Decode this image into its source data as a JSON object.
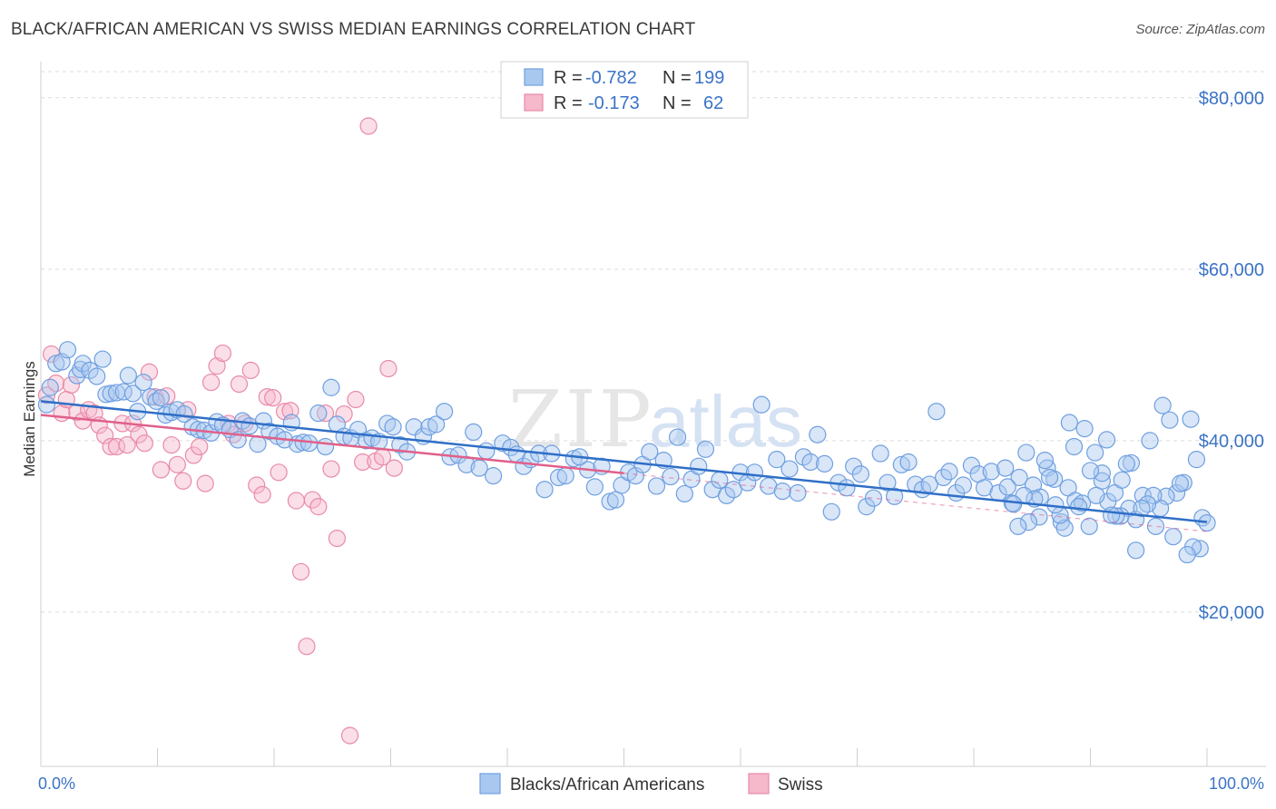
{
  "title": "BLACK/AFRICAN AMERICAN VS SWISS MEDIAN EARNINGS CORRELATION CHART",
  "source": "Source: ZipAtlas.com",
  "watermark": {
    "zip": "ZIP",
    "atlas": "atlas"
  },
  "colors": {
    "blue_fill": "#a8c8f0",
    "blue_stroke": "#6f9fe0",
    "blue_line": "#2f6fc7",
    "pink_fill": "#f6b8cb",
    "pink_stroke": "#e88aa8",
    "pink_line": "#e0608a",
    "grid": "#dcdcdc",
    "tick_text": "#3b73c6"
  },
  "stats_box": {
    "rows": [
      {
        "r_label": "R =",
        "r_value": "-0.782",
        "n_label": "N =",
        "n_value": "199"
      },
      {
        "r_label": "R =",
        "r_value": "-0.173",
        "n_label": "N =",
        "n_value": "62"
      }
    ]
  },
  "chart_data": {
    "type": "scatter",
    "title": "BLACK/AFRICAN AMERICAN VS SWISS MEDIAN EARNINGS CORRELATION CHART",
    "xlabel": "",
    "ylabel": "Median Earnings",
    "xlim": [
      0,
      100
    ],
    "ylim": [
      2000,
      84000
    ],
    "x_tick_labels": [
      "0.0%",
      "100.0%"
    ],
    "y_ticks": [
      20000,
      40000,
      60000,
      80000
    ],
    "y_tick_labels": [
      "$20,000",
      "$40,000",
      "$60,000",
      "$80,000"
    ],
    "grid": true,
    "legend_position": "bottom-center",
    "series": [
      {
        "name": "Blacks/African Americans",
        "color": "blue",
        "R": -0.782,
        "N": 199,
        "trend": {
          "x": [
            0,
            100
          ],
          "y": [
            44600,
            30500
          ]
        },
        "points": [
          [
            0.5,
            44200
          ],
          [
            0.8,
            46200
          ],
          [
            1.3,
            49000
          ],
          [
            1.8,
            49200
          ],
          [
            2.3,
            50600
          ],
          [
            3.1,
            47600
          ],
          [
            3.4,
            48300
          ],
          [
            3.6,
            49000
          ],
          [
            4.2,
            48200
          ],
          [
            4.8,
            47500
          ],
          [
            5.3,
            49500
          ],
          [
            5.6,
            45400
          ],
          [
            6.0,
            45500
          ],
          [
            6.5,
            45600
          ],
          [
            7.1,
            45700
          ],
          [
            7.5,
            47600
          ],
          [
            7.9,
            45500
          ],
          [
            8.3,
            43400
          ],
          [
            8.8,
            46800
          ],
          [
            9.4,
            45100
          ],
          [
            9.9,
            44600
          ],
          [
            10.3,
            45000
          ],
          [
            10.7,
            43000
          ],
          [
            11.2,
            43300
          ],
          [
            11.7,
            43600
          ],
          [
            12.3,
            43100
          ],
          [
            13.0,
            41600
          ],
          [
            13.5,
            41300
          ],
          [
            14.0,
            41200
          ],
          [
            14.6,
            40900
          ],
          [
            15.1,
            42200
          ],
          [
            15.6,
            41800
          ],
          [
            16.2,
            41300
          ],
          [
            16.9,
            40100
          ],
          [
            17.3,
            42300
          ],
          [
            17.9,
            41700
          ],
          [
            18.6,
            39600
          ],
          [
            19.1,
            42300
          ],
          [
            19.6,
            41100
          ],
          [
            20.3,
            40500
          ],
          [
            20.9,
            40100
          ],
          [
            21.5,
            42100
          ],
          [
            22.0,
            39600
          ],
          [
            22.5,
            39800
          ],
          [
            23.0,
            39700
          ],
          [
            23.8,
            43200
          ],
          [
            24.4,
            39300
          ],
          [
            24.9,
            46200
          ],
          [
            25.4,
            41900
          ],
          [
            26.0,
            40500
          ],
          [
            26.6,
            40300
          ],
          [
            27.2,
            41300
          ],
          [
            27.9,
            40000
          ],
          [
            28.4,
            40300
          ],
          [
            29.0,
            39900
          ],
          [
            29.7,
            42000
          ],
          [
            30.2,
            41600
          ],
          [
            30.8,
            39500
          ],
          [
            31.4,
            38700
          ],
          [
            32.0,
            41600
          ],
          [
            32.8,
            40500
          ],
          [
            33.3,
            41600
          ],
          [
            33.9,
            41900
          ],
          [
            34.6,
            43400
          ],
          [
            35.1,
            38100
          ],
          [
            35.8,
            38300
          ],
          [
            36.5,
            37200
          ],
          [
            37.1,
            41000
          ],
          [
            37.6,
            36800
          ],
          [
            38.2,
            38800
          ],
          [
            38.8,
            35900
          ],
          [
            39.6,
            39700
          ],
          [
            40.3,
            39200
          ],
          [
            40.8,
            38400
          ],
          [
            41.4,
            37000
          ],
          [
            42.0,
            37800
          ],
          [
            42.7,
            38500
          ],
          [
            43.2,
            34300
          ],
          [
            43.8,
            38500
          ],
          [
            44.4,
            35700
          ],
          [
            45.0,
            35900
          ],
          [
            45.7,
            37900
          ],
          [
            46.2,
            38100
          ],
          [
            46.9,
            36600
          ],
          [
            47.5,
            34600
          ],
          [
            48.1,
            37000
          ],
          [
            48.8,
            32900
          ],
          [
            49.3,
            33100
          ],
          [
            49.8,
            34800
          ],
          [
            50.4,
            36300
          ],
          [
            51.0,
            35900
          ],
          [
            51.6,
            37200
          ],
          [
            52.2,
            38700
          ],
          [
            52.8,
            34700
          ],
          [
            53.4,
            37700
          ],
          [
            54.0,
            35800
          ],
          [
            54.6,
            40400
          ],
          [
            55.2,
            33800
          ],
          [
            55.8,
            35500
          ],
          [
            56.4,
            37000
          ],
          [
            57.0,
            39000
          ],
          [
            57.6,
            34300
          ],
          [
            58.2,
            35400
          ],
          [
            58.8,
            33600
          ],
          [
            59.4,
            34300
          ],
          [
            60.0,
            36300
          ],
          [
            60.6,
            35100
          ],
          [
            61.2,
            36300
          ],
          [
            61.8,
            44200
          ],
          [
            62.4,
            34700
          ],
          [
            63.1,
            37800
          ],
          [
            63.6,
            34100
          ],
          [
            64.2,
            36700
          ],
          [
            64.9,
            33900
          ],
          [
            65.4,
            38100
          ],
          [
            66.0,
            37500
          ],
          [
            66.6,
            40700
          ],
          [
            67.2,
            37300
          ],
          [
            67.8,
            31700
          ],
          [
            68.4,
            35100
          ],
          [
            69.1,
            34500
          ],
          [
            69.7,
            37000
          ],
          [
            70.3,
            36100
          ],
          [
            70.8,
            32300
          ],
          [
            71.4,
            33300
          ],
          [
            72.0,
            38500
          ],
          [
            72.6,
            35100
          ],
          [
            73.2,
            33500
          ],
          [
            73.8,
            37200
          ],
          [
            74.4,
            37500
          ],
          [
            75.0,
            34900
          ],
          [
            75.6,
            34300
          ],
          [
            76.2,
            34900
          ],
          [
            76.8,
            43400
          ],
          [
            77.4,
            35700
          ],
          [
            77.9,
            36400
          ],
          [
            78.5,
            33900
          ],
          [
            79.1,
            34800
          ],
          [
            79.8,
            37100
          ],
          [
            80.4,
            36100
          ],
          [
            80.9,
            34500
          ],
          [
            81.5,
            36400
          ],
          [
            82.1,
            33900
          ],
          [
            82.7,
            36800
          ],
          [
            83.3,
            32700
          ],
          [
            83.9,
            35700
          ],
          [
            84.5,
            38600
          ],
          [
            85.1,
            34800
          ],
          [
            85.7,
            33400
          ],
          [
            86.3,
            36800
          ],
          [
            86.9,
            35500
          ],
          [
            87.5,
            30500
          ],
          [
            88.1,
            34500
          ],
          [
            88.7,
            33000
          ],
          [
            89.3,
            32700
          ],
          [
            89.9,
            30000
          ],
          [
            90.4,
            38600
          ],
          [
            91.0,
            35300
          ],
          [
            91.5,
            32900
          ],
          [
            92.1,
            33900
          ],
          [
            92.7,
            35400
          ],
          [
            93.3,
            32100
          ],
          [
            93.9,
            30800
          ],
          [
            94.5,
            33600
          ],
          [
            95.1,
            40000
          ],
          [
            95.6,
            30000
          ],
          [
            96.2,
            44100
          ],
          [
            96.8,
            42400
          ],
          [
            97.4,
            33900
          ],
          [
            98.0,
            35100
          ],
          [
            98.6,
            42500
          ],
          [
            99.1,
            37800
          ],
          [
            99.6,
            31000
          ],
          [
            100.0,
            30400
          ],
          [
            99.4,
            27400
          ],
          [
            98.8,
            27600
          ],
          [
            98.3,
            26700
          ],
          [
            97.7,
            35000
          ],
          [
            97.1,
            28800
          ],
          [
            96.5,
            33500
          ],
          [
            96.0,
            32100
          ],
          [
            95.4,
            33600
          ],
          [
            94.9,
            32600
          ],
          [
            94.4,
            32100
          ],
          [
            93.9,
            27200
          ],
          [
            93.5,
            37400
          ],
          [
            93.1,
            37300
          ],
          [
            92.6,
            31200
          ],
          [
            92.2,
            31200
          ],
          [
            91.8,
            31300
          ],
          [
            91.4,
            40100
          ],
          [
            91.0,
            36200
          ],
          [
            90.5,
            33600
          ],
          [
            90.0,
            36500
          ],
          [
            89.5,
            41400
          ],
          [
            89.0,
            32300
          ],
          [
            88.6,
            39300
          ],
          [
            88.2,
            42100
          ],
          [
            87.8,
            29800
          ],
          [
            87.4,
            31300
          ],
          [
            87.0,
            32500
          ],
          [
            86.5,
            35700
          ],
          [
            86.1,
            37700
          ],
          [
            85.6,
            31100
          ],
          [
            85.2,
            33200
          ],
          [
            84.7,
            30500
          ],
          [
            84.3,
            33600
          ],
          [
            83.8,
            30000
          ],
          [
            83.4,
            32600
          ],
          [
            82.9,
            34600
          ]
        ]
      },
      {
        "name": "Swiss",
        "color": "pink",
        "R": -0.173,
        "N": 62,
        "trend": {
          "x": [
            0,
            50
          ],
          "y": [
            43000,
            36200
          ]
        },
        "trend_dashed": {
          "x": [
            50,
            100
          ],
          "y": [
            36200,
            29400
          ]
        },
        "points": [
          [
            0.5,
            45300
          ],
          [
            0.9,
            50100
          ],
          [
            1.3,
            46700
          ],
          [
            1.8,
            43200
          ],
          [
            2.2,
            44800
          ],
          [
            2.6,
            46500
          ],
          [
            3.1,
            43300
          ],
          [
            3.6,
            42300
          ],
          [
            4.1,
            43600
          ],
          [
            4.6,
            43200
          ],
          [
            5.0,
            41800
          ],
          [
            5.5,
            40600
          ],
          [
            6.0,
            39300
          ],
          [
            6.5,
            39300
          ],
          [
            7.0,
            42000
          ],
          [
            7.4,
            39500
          ],
          [
            7.9,
            42000
          ],
          [
            8.4,
            40700
          ],
          [
            8.9,
            39700
          ],
          [
            9.3,
            48000
          ],
          [
            9.8,
            45100
          ],
          [
            10.3,
            36600
          ],
          [
            10.8,
            45200
          ],
          [
            11.2,
            39500
          ],
          [
            11.7,
            37200
          ],
          [
            12.2,
            35300
          ],
          [
            12.6,
            43600
          ],
          [
            13.1,
            38300
          ],
          [
            13.6,
            39300
          ],
          [
            14.1,
            35000
          ],
          [
            14.6,
            46800
          ],
          [
            15.1,
            48700
          ],
          [
            15.6,
            50200
          ],
          [
            16.1,
            42000
          ],
          [
            16.5,
            40700
          ],
          [
            17.0,
            46600
          ],
          [
            17.5,
            42000
          ],
          [
            18.0,
            48200
          ],
          [
            18.5,
            34800
          ],
          [
            19.0,
            33700
          ],
          [
            19.4,
            45100
          ],
          [
            19.9,
            45000
          ],
          [
            20.4,
            36300
          ],
          [
            20.9,
            43400
          ],
          [
            21.4,
            43500
          ],
          [
            21.9,
            33000
          ],
          [
            22.3,
            24700
          ],
          [
            22.8,
            16000
          ],
          [
            23.3,
            33100
          ],
          [
            23.8,
            32300
          ],
          [
            24.4,
            43200
          ],
          [
            24.9,
            36700
          ],
          [
            25.4,
            28600
          ],
          [
            26.0,
            43100
          ],
          [
            26.5,
            5600
          ],
          [
            27.0,
            44800
          ],
          [
            27.6,
            37500
          ],
          [
            28.1,
            76700
          ],
          [
            28.7,
            37600
          ],
          [
            29.3,
            38100
          ],
          [
            29.8,
            48400
          ],
          [
            30.3,
            36800
          ]
        ]
      }
    ]
  },
  "legend": {
    "items": [
      {
        "label": "Blacks/African Americans"
      },
      {
        "label": "Swiss"
      }
    ]
  }
}
